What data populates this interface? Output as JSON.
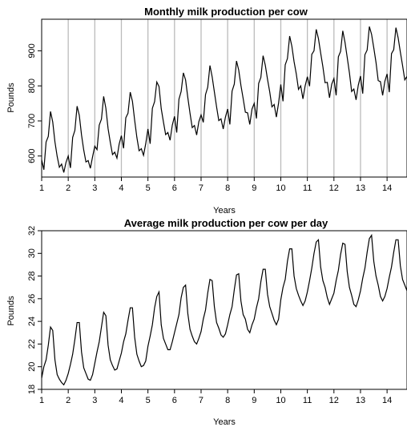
{
  "chart_data": [
    {
      "type": "line",
      "title": "Monthly milk production per cow",
      "xlabel": "Years",
      "ylabel": "Pounds",
      "xlim": [
        1,
        14.75
      ],
      "ylim": [
        540,
        990
      ],
      "xticks": [
        1,
        2,
        3,
        4,
        5,
        6,
        7,
        8,
        9,
        10,
        11,
        12,
        13,
        14
      ],
      "yticks": [
        600,
        700,
        800,
        900
      ],
      "year_gridlines": true,
      "grid_color": "#bbbbbb",
      "line_color": "#000000",
      "series": [
        {
          "x_start": 1,
          "x_step": 0.0833333,
          "values": [
            589,
            561,
            640,
            656,
            727,
            697,
            640,
            599,
            568,
            577,
            553,
            582,
            600,
            566,
            653,
            673,
            742,
            716,
            660,
            617,
            583,
            587,
            565,
            598,
            628,
            618,
            688,
            705,
            770,
            736,
            678,
            639,
            604,
            611,
            594,
            634,
            658,
            622,
            709,
            722,
            782,
            756,
            702,
            653,
            615,
            621,
            602,
            635,
            677,
            635,
            736,
            755,
            811,
            798,
            735,
            697,
            661,
            667,
            645,
            688,
            713,
            667,
            762,
            784,
            837,
            817,
            767,
            722,
            681,
            687,
            660,
            698,
            717,
            696,
            775,
            796,
            858,
            826,
            783,
            740,
            701,
            706,
            677,
            711,
            734,
            690,
            785,
            805,
            871,
            845,
            801,
            764,
            725,
            723,
            690,
            734,
            750,
            707,
            807,
            824,
            886,
            859,
            819,
            783,
            740,
            747,
            711,
            751,
            804,
            756,
            860,
            878,
            942,
            913,
            869,
            834,
            790,
            800,
            763,
            800,
            826,
            799,
            890,
            900,
            961,
            935,
            894,
            855,
            809,
            810,
            766,
            805,
            821,
            773,
            883,
            898,
            957,
            924,
            881,
            837,
            784,
            791,
            760,
            802,
            828,
            778,
            889,
            902,
            969,
            947,
            908,
            867,
            815,
            812,
            773,
            813,
            834,
            782,
            892,
            903,
            966,
            937,
            896,
            858,
            817,
            827
          ]
        }
      ]
    },
    {
      "type": "line",
      "title": "Average milk production per cow per day",
      "xlabel": "Years",
      "ylabel": "Pounds",
      "xlim": [
        1,
        14.75
      ],
      "ylim": [
        18,
        32
      ],
      "xticks": [
        1,
        2,
        3,
        4,
        5,
        6,
        7,
        8,
        9,
        10,
        11,
        12,
        13,
        14
      ],
      "yticks": [
        18,
        20,
        22,
        24,
        26,
        28,
        30,
        32
      ],
      "year_gridlines": false,
      "line_color": "#000000",
      "series": [
        {
          "x_start": 1,
          "x_step": 0.0833333,
          "values": [
            19.0,
            20.0,
            20.6,
            21.9,
            23.5,
            23.2,
            20.6,
            19.3,
            18.9,
            18.6,
            18.4,
            18.8,
            19.4,
            20.2,
            21.1,
            22.4,
            23.9,
            23.9,
            21.3,
            19.9,
            19.4,
            18.9,
            18.8,
            19.3,
            20.3,
            21.3,
            22.2,
            23.5,
            24.8,
            24.5,
            21.9,
            20.6,
            20.1,
            19.7,
            19.8,
            20.5,
            21.2,
            22.2,
            22.9,
            24.1,
            25.2,
            25.2,
            22.6,
            21.1,
            20.5,
            20.0,
            20.1,
            20.5,
            21.8,
            22.7,
            23.7,
            25.2,
            26.2,
            26.6,
            23.7,
            22.5,
            22.0,
            21.5,
            21.5,
            22.2,
            23.0,
            23.8,
            24.6,
            26.1,
            27.0,
            27.2,
            24.7,
            23.3,
            22.7,
            22.2,
            22.0,
            22.5,
            23.1,
            24.2,
            25.0,
            26.5,
            27.7,
            27.6,
            25.3,
            23.9,
            23.4,
            22.8,
            22.6,
            22.9,
            23.7,
            24.6,
            25.3,
            26.8,
            28.1,
            28.2,
            25.8,
            24.6,
            24.2,
            23.3,
            23.0,
            23.7,
            24.2,
            25.2,
            26.0,
            27.5,
            28.6,
            28.6,
            26.4,
            25.3,
            24.7,
            24.1,
            23.7,
            24.2,
            25.9,
            27.0,
            27.7,
            29.3,
            30.4,
            30.4,
            28.0,
            26.9,
            26.3,
            25.8,
            25.4,
            25.8,
            26.6,
            27.6,
            28.7,
            30.0,
            31.0,
            31.2,
            28.8,
            27.6,
            27.0,
            26.1,
            25.5,
            26.0,
            26.5,
            27.6,
            28.5,
            29.9,
            30.9,
            30.8,
            28.4,
            27.0,
            26.3,
            25.5,
            25.3,
            25.9,
            26.7,
            27.8,
            28.7,
            30.1,
            31.3,
            31.6,
            29.3,
            28.0,
            27.2,
            26.2,
            25.8,
            26.2,
            26.9,
            27.9,
            28.8,
            30.1,
            31.2,
            31.2,
            28.9,
            27.7,
            27.2,
            26.7
          ]
        }
      ]
    }
  ]
}
